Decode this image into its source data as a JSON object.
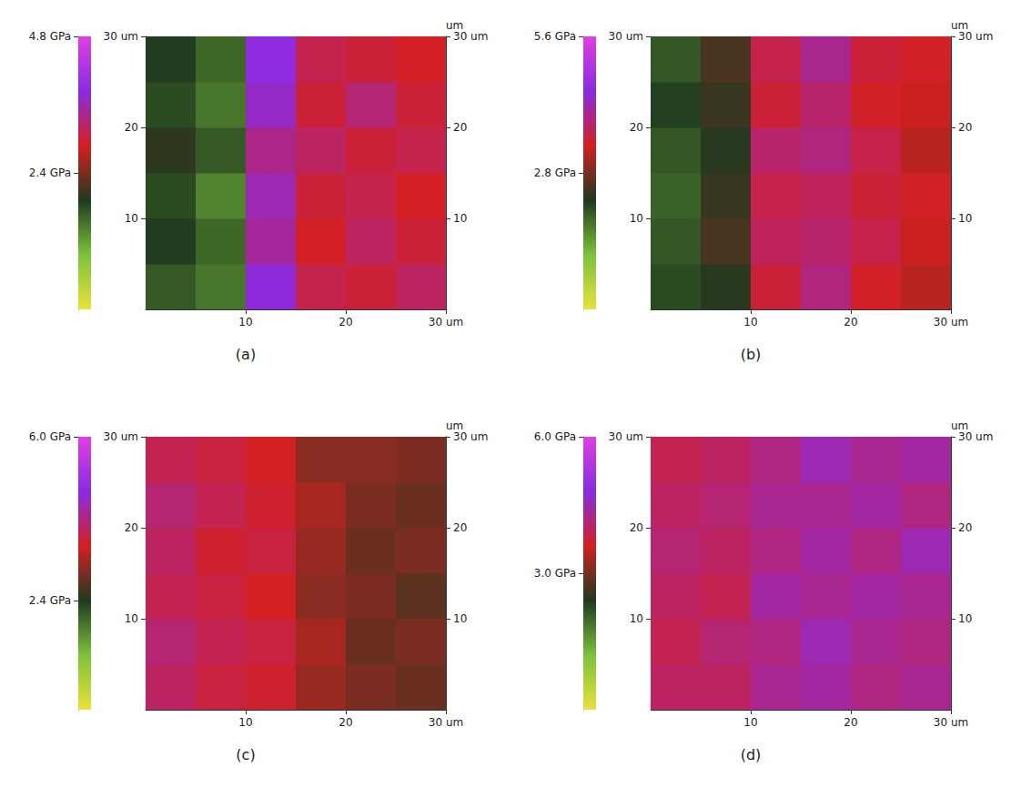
{
  "chart_data": [
    {
      "type": "heatmap",
      "label": "(a)",
      "x": [
        2.5,
        7.5,
        12.5,
        17.5,
        22.5,
        27.5
      ],
      "y": [
        2.5,
        7.5,
        12.5,
        17.5,
        22.5,
        27.5
      ],
      "values": [
        [
          1.7,
          1.5,
          3.8,
          3.1,
          3.0,
          3.2
        ],
        [
          1.9,
          1.6,
          3.5,
          2.9,
          3.2,
          3.0
        ],
        [
          1.8,
          1.4,
          3.6,
          3.0,
          3.1,
          2.9
        ],
        [
          2.0,
          1.7,
          3.4,
          3.2,
          3.0,
          3.1
        ],
        [
          1.8,
          1.5,
          3.7,
          3.0,
          3.3,
          3.0
        ],
        [
          1.9,
          1.6,
          3.9,
          3.1,
          3.0,
          2.9
        ]
      ],
      "xlim": [
        0,
        30
      ],
      "ylim": [
        0,
        30
      ],
      "xticks": [
        10,
        20,
        {
          "value": 30,
          "label": "30 um"
        }
      ],
      "yticks": [
        10,
        20,
        {
          "value": 30,
          "label": "30 um"
        }
      ],
      "y_right_label": "um",
      "zlim": [
        0,
        4.8
      ],
      "zticks": [
        {
          "value": 2.4,
          "label": "2.4 GPa"
        },
        {
          "value": 4.8,
          "label": "4.8 GPa"
        }
      ]
    },
    {
      "type": "heatmap",
      "label": "(b)",
      "x": [
        2.5,
        7.5,
        12.5,
        17.5,
        22.5,
        27.5
      ],
      "y": [
        2.5,
        7.5,
        12.5,
        17.5,
        22.5,
        27.5
      ],
      "values": [
        [
          2.1,
          2.3,
          3.5,
          3.9,
          3.4,
          3.2
        ],
        [
          2.0,
          2.5,
          3.7,
          3.8,
          3.6,
          3.3
        ],
        [
          1.9,
          2.4,
          3.6,
          3.7,
          3.5,
          3.4
        ],
        [
          2.0,
          2.3,
          3.8,
          3.9,
          3.6,
          3.2
        ],
        [
          2.2,
          2.4,
          3.5,
          3.8,
          3.4,
          3.3
        ],
        [
          2.0,
          2.5,
          3.6,
          4.0,
          3.5,
          3.4
        ]
      ],
      "xlim": [
        0,
        30
      ],
      "ylim": [
        0,
        30
      ],
      "xticks": [
        10,
        20,
        {
          "value": 30,
          "label": "30 um"
        }
      ],
      "yticks": [
        10,
        20,
        {
          "value": 30,
          "label": "30 um"
        }
      ],
      "y_right_label": "um",
      "zlim": [
        0,
        5.6
      ],
      "zticks": [
        {
          "value": 2.8,
          "label": "2.8 GPa"
        },
        {
          "value": 5.6,
          "label": "5.6 GPa"
        }
      ]
    },
    {
      "type": "heatmap",
      "label": "(c)",
      "x": [
        2.5,
        7.5,
        12.5,
        17.5,
        22.5,
        27.5
      ],
      "y": [
        2.5,
        7.5,
        12.5,
        17.5,
        22.5,
        27.5
      ],
      "values": [
        [
          4.0,
          3.8,
          3.7,
          3.2,
          3.0,
          2.9
        ],
        [
          4.1,
          3.9,
          3.8,
          3.3,
          2.9,
          3.0
        ],
        [
          3.9,
          3.8,
          3.6,
          3.1,
          3.0,
          2.8
        ],
        [
          4.0,
          3.7,
          3.8,
          3.2,
          2.9,
          3.0
        ],
        [
          4.1,
          3.9,
          3.7,
          3.3,
          3.0,
          2.9
        ],
        [
          3.9,
          3.8,
          3.6,
          3.1,
          3.1,
          3.0
        ]
      ],
      "xlim": [
        0,
        30
      ],
      "ylim": [
        0,
        30
      ],
      "xticks": [
        10,
        20,
        {
          "value": 30,
          "label": "30 um"
        }
      ],
      "yticks": [
        10,
        20,
        {
          "value": 30,
          "label": "30 um"
        }
      ],
      "y_right_label": "um",
      "zlim": [
        0,
        6.0
      ],
      "zticks": [
        {
          "value": 2.4,
          "label": "2.4 GPa"
        },
        {
          "value": 6.0,
          "label": "6.0 GPa"
        }
      ]
    },
    {
      "type": "heatmap",
      "label": "(d)",
      "x": [
        2.5,
        7.5,
        12.5,
        17.5,
        22.5,
        27.5
      ],
      "y": [
        2.5,
        7.5,
        12.5,
        17.5,
        22.5,
        27.5
      ],
      "values": [
        [
          4.0,
          4.0,
          4.3,
          4.4,
          4.2,
          4.3
        ],
        [
          3.9,
          4.1,
          4.2,
          4.5,
          4.3,
          4.2
        ],
        [
          4.0,
          3.9,
          4.4,
          4.3,
          4.4,
          4.3
        ],
        [
          4.1,
          4.0,
          4.2,
          4.4,
          4.2,
          4.5
        ],
        [
          4.0,
          4.1,
          4.3,
          4.3,
          4.4,
          4.2
        ],
        [
          3.9,
          4.0,
          4.2,
          4.5,
          4.3,
          4.4
        ]
      ],
      "xlim": [
        0,
        30
      ],
      "ylim": [
        0,
        30
      ],
      "xticks": [
        10,
        20,
        {
          "value": 30,
          "label": "30 um"
        }
      ],
      "yticks": [
        10,
        20,
        {
          "value": 30,
          "label": "30 um"
        }
      ],
      "y_right_label": "um",
      "zlim": [
        0,
        6.0
      ],
      "zticks": [
        {
          "value": 3.0,
          "label": "3.0 GPa"
        },
        {
          "value": 6.0,
          "label": "6.0 GPa"
        }
      ]
    }
  ]
}
